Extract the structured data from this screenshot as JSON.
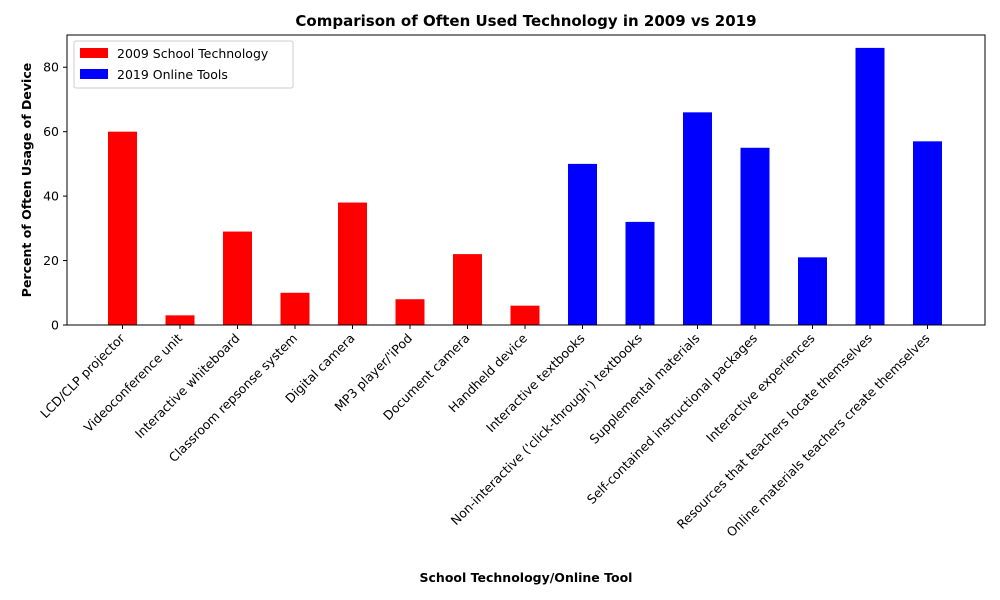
{
  "chart_data": {
    "type": "bar",
    "title": "Comparison of Often Used Technology in 2009 vs 2019",
    "xlabel": "School Technology/Online Tool",
    "ylabel": "Percent of Often Usage of Device",
    "ylim": [
      0,
      90
    ],
    "yticks": [
      0,
      20,
      40,
      60,
      80
    ],
    "grid": false,
    "legend_position": "top-left",
    "categories": [
      "LCD/CLP projector",
      "Videoconference unit",
      "Interactive whiteboard",
      "Classroom repsonse system",
      "Digital camera",
      "MP3 player/'iPod",
      "Document camera",
      "Handheld device",
      "Interactive textbooks",
      "Non-interactive ('click-through') textbooks",
      "Supplemental materials",
      "Self-contained instructional packages",
      "Interactive experiences",
      "Resources that teachers locate themselves",
      "Online materials teachers create themselves"
    ],
    "series": [
      {
        "name": "2009 School Technology",
        "color": "#ff0000",
        "values": [
          60,
          3,
          29,
          10,
          38,
          8,
          22,
          6,
          null,
          null,
          null,
          null,
          null,
          null,
          null
        ]
      },
      {
        "name": "2019 Online Tools",
        "color": "#0000ff",
        "values": [
          null,
          null,
          null,
          null,
          null,
          null,
          null,
          null,
          50,
          32,
          66,
          55,
          21,
          86,
          57
        ]
      }
    ]
  }
}
